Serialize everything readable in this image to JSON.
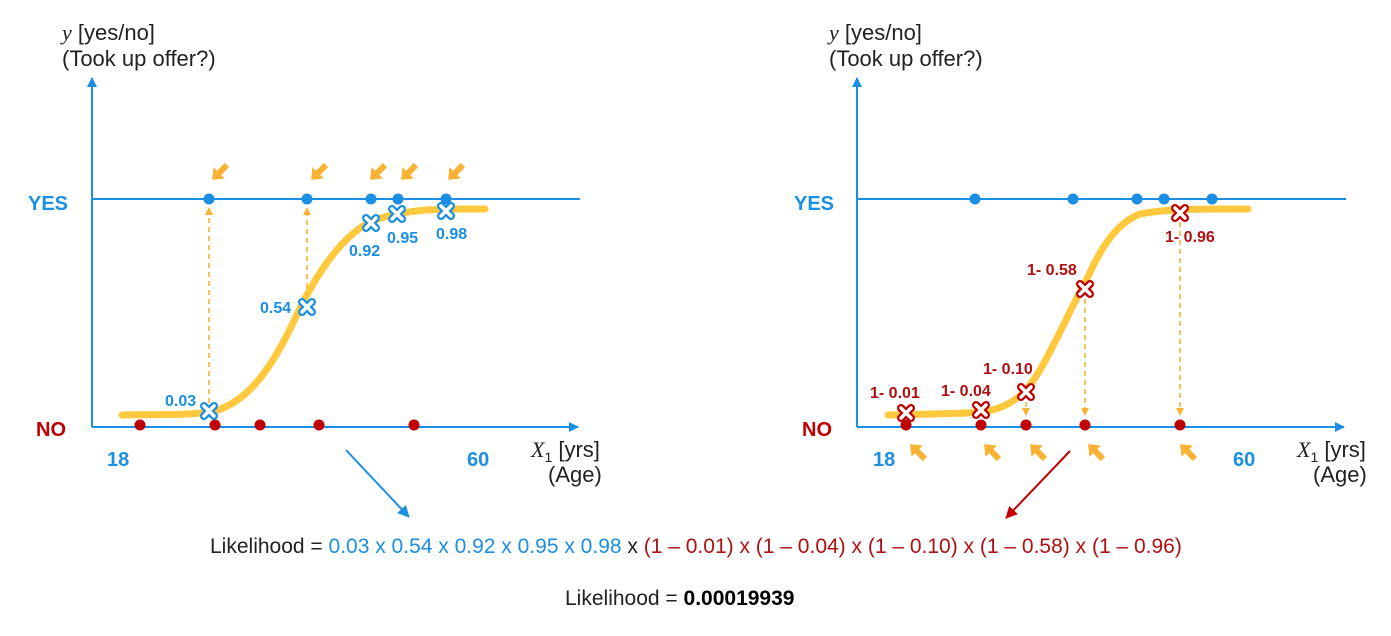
{
  "colors": {
    "axis_blue": "#1a8fe3",
    "no_red": "#c00000",
    "curve_yellow": "#ffc83d",
    "arrow_orange": "#f9b233",
    "text_dark": "#222222"
  },
  "left_panel": {
    "y_title_var": "y",
    "y_title_line1": " [yes/no]",
    "y_title_line2": "(Took up offer?)",
    "yes_label": "YES",
    "no_label": "NO",
    "x_min_label": "18",
    "x_max_label": "60",
    "x_title_var": "X",
    "x_title_sub": "1",
    "x_title_unit": " [yrs]",
    "x_title_line2": "(Age)",
    "prob_labels": [
      "0.03",
      "0.54",
      "0.92",
      "0.95",
      "0.98"
    ]
  },
  "right_panel": {
    "y_title_var": "y",
    "y_title_line1": " [yes/no]",
    "y_title_line2": "(Took up offer?)",
    "yes_label": "YES",
    "no_label": "NO",
    "x_min_label": "18",
    "x_max_label": "60",
    "x_title_var": "X",
    "x_title_sub": "1",
    "x_title_unit": " [yrs]",
    "x_title_line2": "(Age)",
    "prob_labels": [
      "1- 0.01",
      "1- 0.04",
      "1- 0.10",
      "1- 0.58",
      "1- 0.96"
    ]
  },
  "equation1": {
    "prefix": "Likelihood = ",
    "blue_part": "0.03 x 0.54 x 0.92 x 0.95 x 0.98",
    "mid": " x ",
    "red_part": "(1 – 0.01) x (1 – 0.04) x (1 – 0.10) x (1 – 0.58) x (1 – 0.96)"
  },
  "equation2": {
    "prefix": "Likelihood = ",
    "value": "0.00019939"
  }
}
